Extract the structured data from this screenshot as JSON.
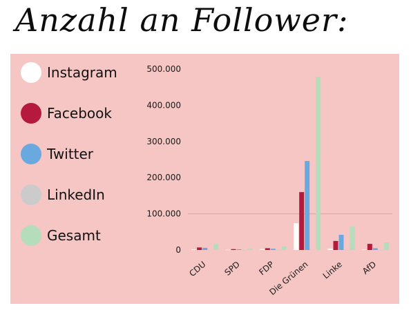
{
  "title": "Anzahl an Follower:",
  "colors": {
    "background": "#f5c6c4",
    "Instagram": "#ffffff",
    "Facebook": "#b5193e",
    "Twitter": "#6aa8e0",
    "LinkedIn": "#cbcbcb",
    "Gesamt": "#b5dcbb",
    "gridline": "#e59e9a"
  },
  "chart_data": {
    "type": "bar",
    "categories": [
      "CDU",
      "SPD",
      "FDP",
      "Die Grünen",
      "Linke",
      "AfD"
    ],
    "series": [
      {
        "name": "Instagram",
        "values": [
          2000,
          800,
          2500,
          74000,
          4000,
          1500
        ]
      },
      {
        "name": "Facebook",
        "values": [
          7000,
          2500,
          5000,
          160000,
          25000,
          17000
        ]
      },
      {
        "name": "Twitter",
        "values": [
          6000,
          2000,
          3500,
          246000,
          42000,
          5000
        ]
      },
      {
        "name": "LinkedIn",
        "values": [
          500,
          300,
          500,
          700,
          500,
          300
        ]
      },
      {
        "name": "Gesamt",
        "values": [
          18000,
          4000,
          10000,
          479000,
          65000,
          21000
        ]
      }
    ],
    "yticks": [
      "0",
      "100.000",
      "200.000",
      "300.000",
      "400.000",
      "500.000"
    ],
    "ylim": [
      0,
      500000
    ],
    "gridline_at": 100000,
    "legend_position": "left"
  }
}
